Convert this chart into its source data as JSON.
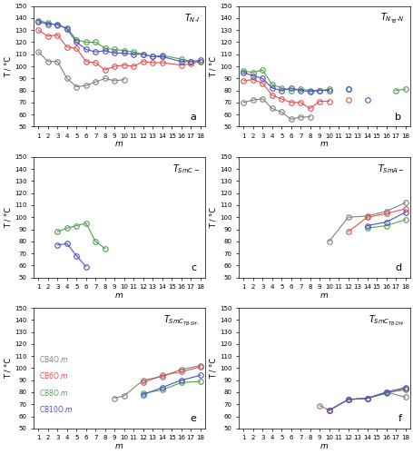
{
  "colors": {
    "gray": "#808080",
    "red": "#e05050",
    "green": "#50a050",
    "blue": "#5050c8"
  },
  "panel_a": {
    "title": "T_{N-I}",
    "label": "a",
    "gray": {
      "m": [
        1,
        2,
        3,
        4,
        5,
        6,
        7,
        8,
        9,
        10,
        11,
        12,
        13,
        14,
        16,
        17,
        18
      ],
      "T": [
        112,
        104,
        104,
        90,
        83,
        84,
        87,
        90,
        88,
        89,
        null,
        null,
        null,
        null,
        null,
        null,
        null
      ]
    },
    "red": {
      "m": [
        1,
        2,
        3,
        4,
        5,
        6,
        7,
        8,
        9,
        10,
        11,
        12,
        13,
        14,
        16,
        17,
        18
      ],
      "T": [
        130,
        125,
        126,
        116,
        115,
        104,
        103,
        97,
        100,
        101,
        100,
        104,
        103,
        103,
        101,
        102,
        104
      ]
    },
    "green": {
      "m": [
        1,
        2,
        3,
        4,
        5,
        6,
        7,
        8,
        9,
        10,
        11,
        12,
        13,
        14,
        16,
        17,
        18
      ],
      "T": [
        138,
        136,
        134,
        132,
        122,
        120,
        120,
        115,
        114,
        113,
        112,
        110,
        108,
        109,
        106,
        104,
        104
      ]
    },
    "blue": {
      "m": [
        1,
        2,
        3,
        4,
        5,
        6,
        7,
        8,
        9,
        10,
        11,
        12,
        13,
        14,
        16,
        17,
        18
      ],
      "T": [
        137,
        135,
        135,
        131,
        120,
        114,
        112,
        113,
        111,
        111,
        110,
        110,
        108,
        108,
        104,
        104,
        105
      ]
    }
  },
  "panel_b": {
    "title": "T_{N_{TB}-N}",
    "label": "b",
    "gray": {
      "m": [
        1,
        2,
        3,
        4,
        5,
        6,
        7,
        8,
        9,
        10,
        11,
        12,
        13,
        14
      ],
      "T": [
        70,
        72,
        73,
        65,
        62,
        56,
        58,
        58,
        null,
        null,
        null,
        null,
        null,
        null
      ]
    },
    "red": {
      "m": [
        1,
        2,
        3,
        4,
        5,
        6,
        7,
        8,
        9,
        10,
        11,
        12,
        13,
        14
      ],
      "T": [
        88,
        89,
        86,
        76,
        73,
        70,
        70,
        65,
        71,
        71,
        null,
        72,
        null,
        null
      ]
    },
    "green": {
      "m": [
        1,
        2,
        3,
        4,
        5,
        6,
        7,
        8,
        9,
        10,
        11,
        12,
        13,
        14,
        16,
        17,
        18
      ],
      "T": [
        96,
        95,
        97,
        85,
        82,
        80,
        81,
        80,
        80,
        81,
        null,
        81,
        null,
        null,
        null,
        80,
        81
      ]
    },
    "blue": {
      "m": [
        1,
        2,
        3,
        4,
        5,
        6,
        7,
        8,
        9,
        10,
        11,
        12,
        13,
        14
      ],
      "T": [
        95,
        92,
        90,
        82,
        80,
        82,
        80,
        79,
        80,
        80,
        null,
        81,
        null,
        72
      ]
    }
  },
  "panel_c": {
    "title": "T_{SmC-}",
    "label": "c",
    "green": {
      "m": [
        3,
        4,
        5,
        6,
        7,
        8
      ],
      "T": [
        88,
        91,
        93,
        95,
        80,
        74
      ]
    },
    "blue": {
      "m": [
        3,
        4,
        5,
        6
      ],
      "T": [
        77,
        78,
        68,
        59
      ]
    }
  },
  "panel_d": {
    "title": "T_{SmA-}",
    "label": "d",
    "gray": {
      "m": [
        10,
        12,
        14,
        16,
        18
      ],
      "T": [
        80,
        100,
        101,
        105,
        112
      ]
    },
    "red": {
      "m": [
        10,
        12,
        14,
        16,
        18
      ],
      "T": [
        null,
        88,
        100,
        103,
        107
      ]
    },
    "green": {
      "m": [
        14,
        16,
        18
      ],
      "T": [
        91,
        93,
        98
      ]
    },
    "blue": {
      "m": [
        14,
        16,
        18
      ],
      "T": [
        93,
        96,
        104
      ]
    }
  },
  "panel_e": {
    "title": "T_{SmC_{TB-SH-}}",
    "label": "e",
    "gray": {
      "m": [
        9,
        10,
        12,
        14,
        16,
        18
      ],
      "T": [
        75,
        77,
        90,
        93,
        99,
        102
      ]
    },
    "red": {
      "m": [
        12,
        14,
        16,
        18
      ],
      "T": [
        88,
        94,
        97,
        101
      ]
    },
    "green": {
      "m": [
        12,
        14,
        16,
        18
      ],
      "T": [
        79,
        82,
        88,
        89
      ]
    },
    "blue": {
      "m": [
        12,
        14,
        16,
        18
      ],
      "T": [
        78,
        84,
        90,
        94
      ]
    }
  },
  "panel_f": {
    "title": "T_{SmC_{TB-DH-}}",
    "label": "f",
    "gray": {
      "m": [
        9,
        10,
        12,
        14,
        16,
        18
      ],
      "T": [
        69,
        65,
        74,
        75,
        80,
        76
      ]
    },
    "red": {
      "m": [
        10,
        12,
        14,
        16,
        18
      ],
      "T": [
        65,
        74,
        75,
        80,
        82
      ]
    },
    "green": {
      "m": [
        12,
        14,
        16,
        18
      ],
      "T": [
        74,
        75,
        79,
        83
      ]
    },
    "blue": {
      "m": [
        10,
        12,
        14,
        16,
        18
      ],
      "T": [
        65,
        74,
        75,
        80,
        84
      ]
    }
  },
  "legend": {
    "CB4O": {
      "color": "#808080",
      "label": "CB4O.m"
    },
    "CB6O": {
      "color": "#e05050",
      "label": "CB6O.m"
    },
    "CB8O": {
      "color": "#50a050",
      "label": "CB8O.m"
    },
    "CB10O": {
      "color": "#5050c8",
      "label": "CB10O.m"
    }
  }
}
